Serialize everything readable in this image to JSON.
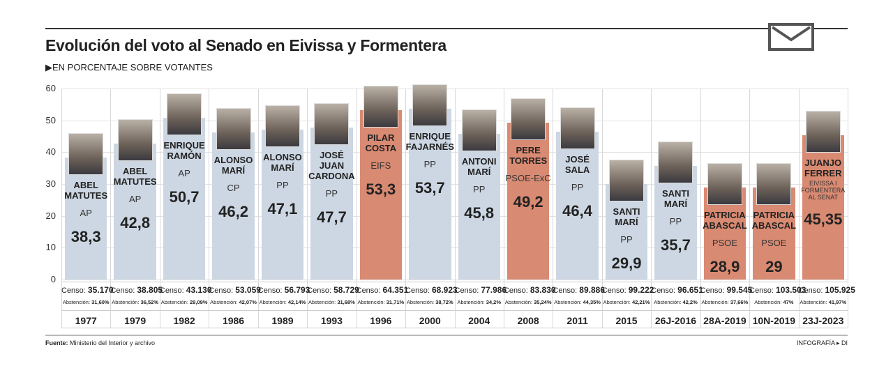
{
  "header": {
    "title": "Evolución del voto al Senado en Eivissa y Formentera",
    "subtitle": "▶EN PORCENTAJE SOBRE VOTANTES"
  },
  "footer": {
    "source_label": "Fuente:",
    "source": "Ministerio del Interior y archivo",
    "credit": "INFOGRAFÍA ▸ DI"
  },
  "labels": {
    "censo": "Censo:",
    "abstencion": "Abstención:"
  },
  "colors": {
    "blue": "#cdd7e3",
    "red": "#d98a72"
  },
  "chart_data": {
    "type": "bar",
    "title": "Evolución del voto al Senado en Eivissa y Formentera",
    "ylabel": "% sobre votantes",
    "ylim": [
      0,
      60
    ],
    "yticks": [
      0,
      10,
      20,
      30,
      40,
      50,
      60
    ],
    "grid": true,
    "categories": [
      "1977",
      "1979",
      "1982",
      "1986",
      "1989",
      "1993",
      "1996",
      "2000",
      "2004",
      "2008",
      "2011",
      "2015",
      "26J-2016",
      "28A-2019",
      "10N-2019",
      "23J-2023"
    ],
    "values": [
      38.3,
      42.8,
      50.7,
      46.2,
      47.1,
      47.7,
      53.3,
      53.7,
      45.8,
      49.2,
      46.4,
      29.9,
      35.7,
      28.9,
      29,
      45.35
    ],
    "value_labels": [
      "38,3",
      "42,8",
      "50,7",
      "46,2",
      "47,1",
      "47,7",
      "53,3",
      "53,7",
      "45,8",
      "49,2",
      "46,4",
      "29,9",
      "35,7",
      "28,9",
      "29",
      "45,35"
    ],
    "names": [
      "ABEL MATUTES",
      "ABEL MATUTES",
      "ENRIQUE RAMÓN",
      "ALONSO MARÍ",
      "ALONSO MARÍ",
      "JOSÉ JUAN CARDONA",
      "PILAR COSTA",
      "ENRIQUE FAJARNÉS",
      "ANTONI MARÍ",
      "PERE TORRES",
      "JOSÉ SALA",
      "SANTI MARÍ",
      "SANTI MARÍ",
      "PATRICIA ABASCAL",
      "PATRICIA ABASCAL",
      "JUANJO FERRER"
    ],
    "parties": [
      "AP",
      "AP",
      "AP",
      "CP",
      "PP",
      "PP",
      "EIFS",
      "PP",
      "PP",
      "PSOE-ExC",
      "PP",
      "PP",
      "PP",
      "PSOE",
      "PSOE",
      "EIVISSA I FORMENTERA AL SENAT"
    ],
    "bar_color": [
      "blue",
      "blue",
      "blue",
      "blue",
      "blue",
      "blue",
      "red",
      "blue",
      "blue",
      "red",
      "blue",
      "blue",
      "blue",
      "red",
      "red",
      "red"
    ],
    "censo": [
      "35.170",
      "38.805",
      "43.130",
      "53.059",
      "56.793",
      "58.729",
      "64.351",
      "68.923",
      "77.986",
      "83.830",
      "89.886",
      "99.222",
      "96.651",
      "99.545",
      "103.503",
      "105.925"
    ],
    "abstencion": [
      "31,60%",
      "36,52%",
      "29,09%",
      "42,07%",
      "42,14%",
      "31,68%",
      "31,71%",
      "38,72%",
      "34,2%",
      "35,24%",
      "44,35%",
      "42,21%",
      "42,2%",
      "37,66%",
      "47%",
      "41,97%"
    ]
  }
}
